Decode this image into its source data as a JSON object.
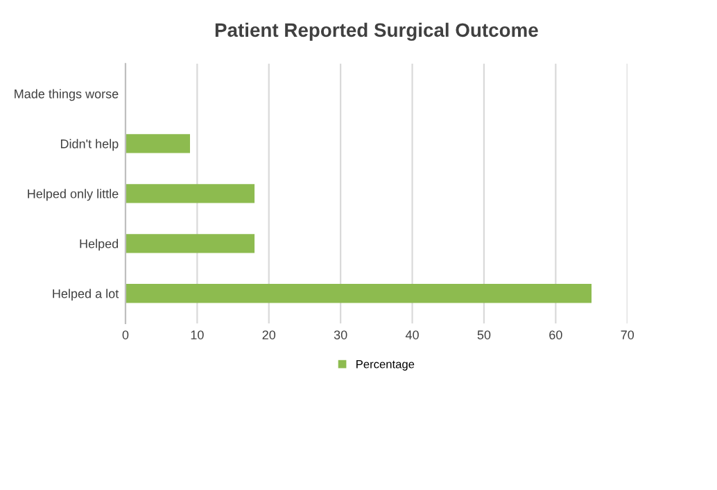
{
  "chart_data": {
    "type": "bar",
    "orientation": "horizontal",
    "title": "Patient Reported Surgical Outcome",
    "categories": [
      "Made things worse",
      "Didn't help",
      "Helped only little",
      "Helped",
      "Helped a lot"
    ],
    "series": [
      {
        "name": "Percentage",
        "color": "#8dbb4f",
        "values": [
          0,
          9,
          18,
          18,
          65
        ]
      }
    ],
    "xlim": [
      0,
      70
    ],
    "xticks": [
      0,
      10,
      20,
      30,
      40,
      50,
      60,
      70
    ],
    "grid": "x",
    "legend": "bottom"
  }
}
